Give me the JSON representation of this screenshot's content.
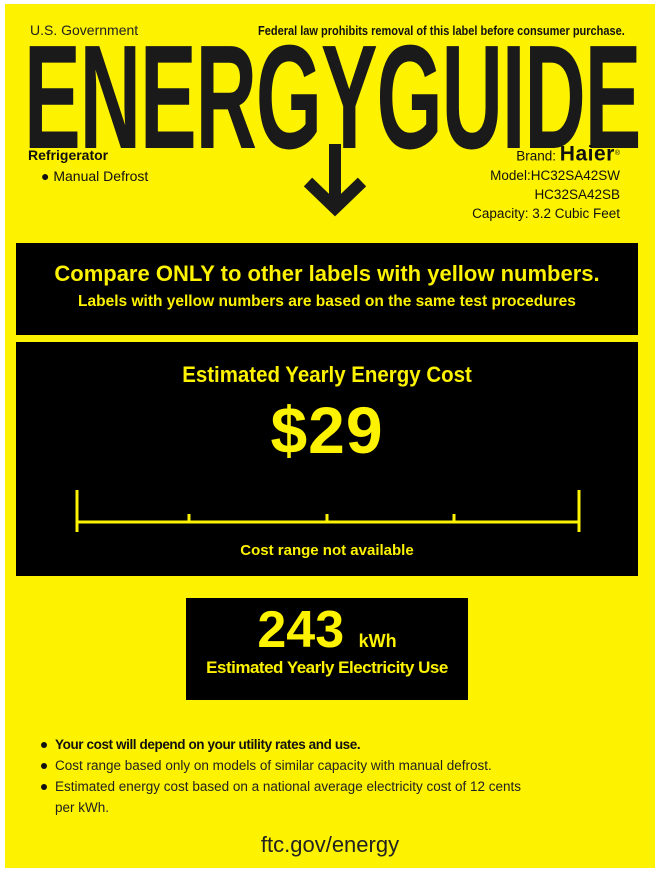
{
  "header": {
    "government": "U.S. Government",
    "notice": "Federal law prohibits removal of this label before consumer purchase.",
    "title": "ENERGYGUIDE"
  },
  "appliance": {
    "category": "Refrigerator",
    "feature": "Manual Defrost"
  },
  "brand": {
    "brand_label": "Brand:",
    "brand_name": "Haier",
    "model_label": "Model:",
    "models": [
      "HC32SA42SW",
      "HC32SA42SB"
    ],
    "capacity": "Capacity: 3.2 Cubic Feet"
  },
  "compare": {
    "heading": "Compare ONLY to other labels with yellow numbers.",
    "subheading": "Labels with yellow numbers are based on the same test procedures"
  },
  "cost": {
    "heading": "Estimated Yearly Energy Cost",
    "value": "$29",
    "range_text": "Cost range not available"
  },
  "electricity": {
    "value": "243",
    "unit": "kWh",
    "caption": "Estimated Yearly Electricity Use"
  },
  "notes": [
    "Your cost will depend on your utility rates and use.",
    "Cost range based only on models of similar capacity with manual defrost.",
    "Estimated energy cost based on a national average electricity cost of 12 cents per kWh."
  ],
  "footer": {
    "link": "ftc.gov/energy"
  },
  "colors": {
    "label_yellow": "#fdf200",
    "box_black": "#000000",
    "ink": "#1a1a1a"
  }
}
